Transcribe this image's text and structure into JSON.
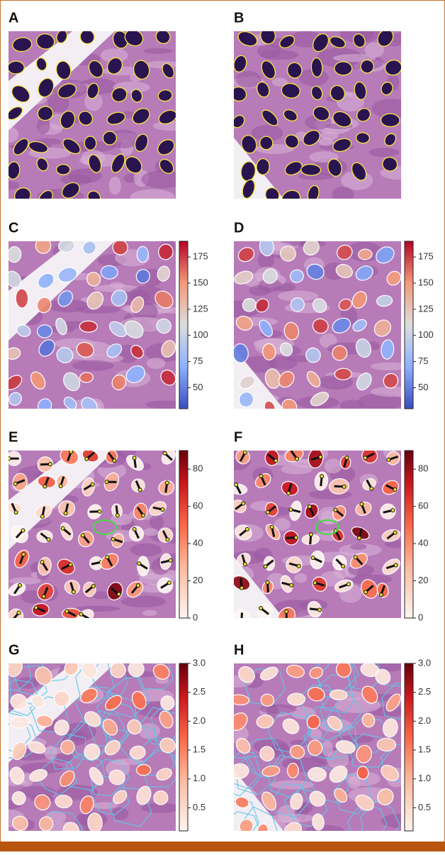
{
  "panels": [
    {
      "label": "A",
      "style": "outline"
    },
    {
      "label": "B",
      "style": "outline"
    },
    {
      "label": "C",
      "style": "coolwarm",
      "colorbar": {
        "lim": [
          30,
          190
        ],
        "ticks": [
          50,
          75,
          100,
          125,
          150,
          175
        ]
      }
    },
    {
      "label": "D",
      "style": "coolwarm",
      "colorbar": {
        "lim": [
          30,
          190
        ],
        "ticks": [
          50,
          75,
          100,
          125,
          150,
          175
        ]
      }
    },
    {
      "label": "E",
      "style": "reds-arrows",
      "colorbar": {
        "lim": [
          0,
          90
        ],
        "ticks": [
          0,
          20,
          40,
          60,
          80
        ]
      }
    },
    {
      "label": "F",
      "style": "reds-arrows",
      "colorbar": {
        "lim": [
          0,
          90
        ],
        "ticks": [
          0,
          20,
          40,
          60,
          80
        ]
      }
    },
    {
      "label": "G",
      "style": "reds-cells",
      "colorbar": {
        "lim": [
          0.1,
          3.0
        ],
        "ticks": [
          0.5,
          {
            "value": 1,
            "label": "1.0"
          },
          1.5,
          {
            "value": 2,
            "label": "2.0"
          },
          2.5,
          {
            "value": 3,
            "label": "3.0"
          }
        ]
      }
    },
    {
      "label": "H",
      "style": "reds-cells",
      "colorbar": {
        "lim": [
          0.1,
          3.0
        ],
        "ticks": [
          0.5,
          {
            "value": 1,
            "label": "1.0"
          },
          1.5,
          {
            "value": 2,
            "label": "2.0"
          },
          2.5,
          {
            "value": 3,
            "label": "3.0"
          }
        ]
      }
    }
  ]
}
